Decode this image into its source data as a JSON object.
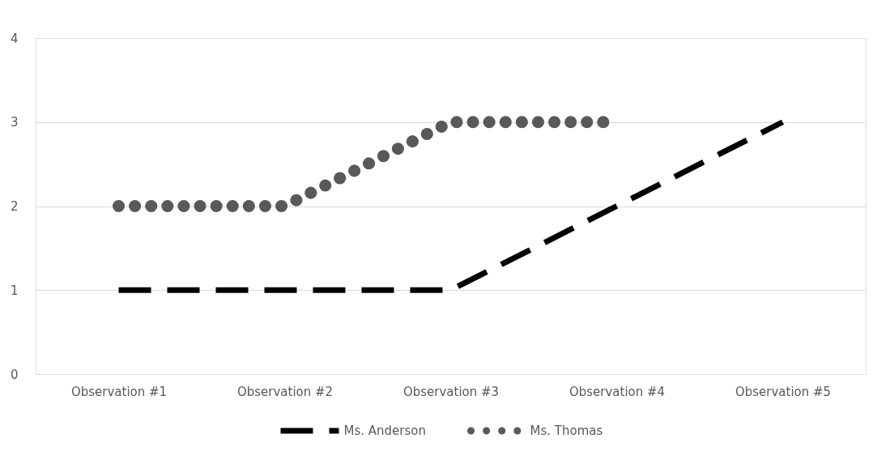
{
  "chart_data": {
    "type": "line",
    "categories": [
      "Observation #1",
      "Observation #2",
      "Observation #3",
      "Observation #4",
      "Observation #5"
    ],
    "series": [
      {
        "name": "Ms. Anderson",
        "color": "#000000",
        "line_style": "dashed",
        "values": [
          1,
          1,
          1,
          2,
          3
        ]
      },
      {
        "name": "Ms. Thomas",
        "color": "#595959",
        "line_style": "dotted",
        "values": [
          2,
          2,
          3,
          3,
          null
        ]
      }
    ],
    "ylim": [
      0,
      4
    ],
    "yticks": [
      0,
      1,
      2,
      3,
      4
    ],
    "grid": "y",
    "legend": "bottom",
    "marker": "none"
  }
}
